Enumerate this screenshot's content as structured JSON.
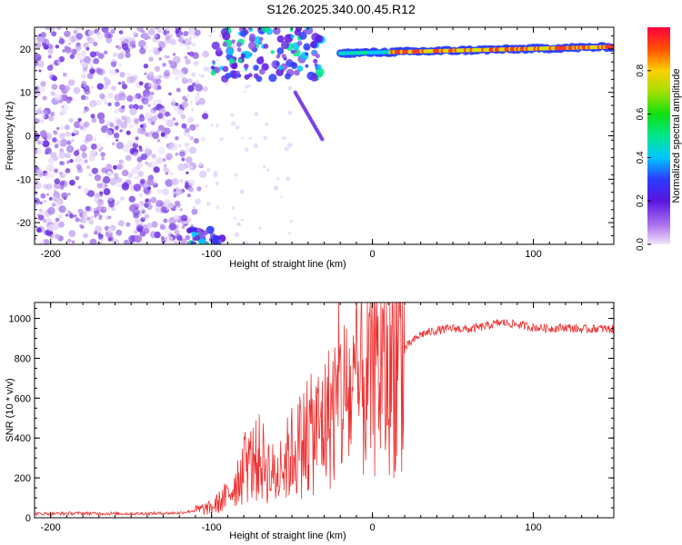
{
  "title": "S126.2025.340.00.45.R12",
  "colors": {
    "snr_line": "#ee3030",
    "dots": "#8a55e8",
    "axis": "#000000"
  },
  "chart_data": [
    {
      "type": "heatmap",
      "title": "",
      "xlabel": "Height of straight line (km)",
      "ylabel": "Frequency (Hz)",
      "xlim": [
        -210,
        150
      ],
      "ylim": [
        -25,
        25
      ],
      "xticks": [
        -200,
        -100,
        0,
        100
      ],
      "yticks": [
        -20,
        -10,
        0,
        10,
        20
      ],
      "colorbar": {
        "label": "Normalized spectral amplitude",
        "range": [
          0,
          1
        ],
        "ticks": [
          "0.0",
          "0.2",
          "0.4",
          "0.6",
          "0.8"
        ],
        "tick_values": [
          0,
          0.2,
          0.4,
          0.6,
          0.8
        ]
      },
      "features": [
        {
          "name": "scattered-low-amplitude-noise",
          "x_range": [
            -210,
            -110
          ],
          "y_range": [
            -25,
            25
          ],
          "amplitude": 0.05
        },
        {
          "name": "tonal-line",
          "x_range": [
            -20,
            150
          ],
          "freq_start": 19,
          "freq_end": 20.5,
          "amplitude": 0.9
        },
        {
          "name": "upper-cluster",
          "x_range": [
            -100,
            -30
          ],
          "y_range": [
            13,
            25
          ],
          "amplitude": 0.35
        },
        {
          "name": "lower-left-cluster",
          "x_range": [
            -115,
            -95
          ],
          "y_range": [
            -25,
            -22
          ],
          "amplitude": 0.35
        }
      ]
    },
    {
      "type": "line",
      "title": "",
      "xlabel": "Height of straight line (km)",
      "ylabel": "SNR (10 * v/v)",
      "xlim": [
        -210,
        150
      ],
      "ylim": [
        0,
        1080
      ],
      "xticks": [
        -200,
        -100,
        0,
        100
      ],
      "yticks": [
        0,
        200,
        400,
        600,
        800,
        1000
      ],
      "series": [
        {
          "name": "SNR",
          "x": [
            -210,
            -180,
            -150,
            -120,
            -100,
            -90,
            -80,
            -70,
            -60,
            -50,
            -40,
            -30,
            -20,
            -10,
            0,
            10,
            20,
            30,
            40,
            50,
            60,
            70,
            80,
            90,
            100,
            110,
            120,
            130,
            140,
            150
          ],
          "values": [
            20,
            22,
            20,
            24,
            50,
            110,
            250,
            300,
            200,
            330,
            400,
            470,
            600,
            620,
            720,
            760,
            850,
            920,
            940,
            950,
            945,
            960,
            980,
            970,
            955,
            950,
            955,
            945,
            950,
            945
          ]
        }
      ]
    }
  ]
}
